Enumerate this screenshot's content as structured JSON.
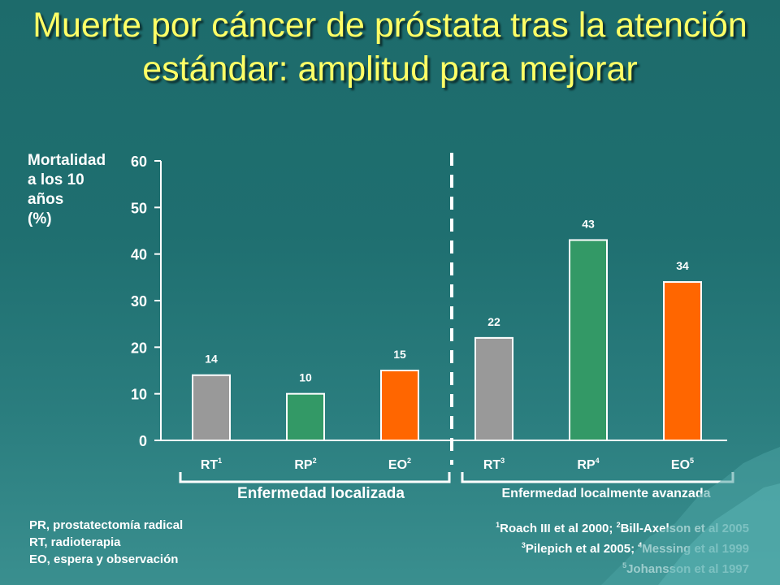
{
  "title": "Muerte por cáncer de próstata tras la atención estándar: amplitud para mejorar",
  "y_axis_label_lines": [
    "Mortalidad",
    "a los 10",
    "años",
    "(%)"
  ],
  "chart_data": {
    "type": "bar",
    "ylim": [
      0,
      60
    ],
    "yticks": [
      "0",
      "10",
      "20",
      "30",
      "40",
      "50",
      "60"
    ],
    "categories": [
      {
        "label": "RT",
        "sup": "1"
      },
      {
        "label": "RP",
        "sup": "2"
      },
      {
        "label": "EO",
        "sup": "2"
      },
      {
        "label": "RT",
        "sup": "3"
      },
      {
        "label": "RP",
        "sup": "4"
      },
      {
        "label": "EO",
        "sup": "5"
      }
    ],
    "values": [
      14,
      10,
      15,
      22,
      43,
      34
    ],
    "bar_colors": [
      "#999999",
      "#339966",
      "#ff6600",
      "#999999",
      "#339966",
      "#ff6600"
    ],
    "groups": [
      "Enfermedad localizada",
      "Enfermedad localmente avanzada"
    ],
    "separator_after_index": 2
  },
  "footnotes_left": [
    "PR, prostatectomía radical",
    "RT, radioterapia",
    "EO, espera y observación"
  ],
  "references": [
    [
      {
        "sup": "1",
        "text": "Roach III et al 2000; "
      },
      {
        "sup": "2",
        "text": "Bill-Axelson et al 2005"
      }
    ],
    [
      {
        "sup": "3",
        "text": "Pilepich et al 2005; "
      },
      {
        "sup": "4",
        "text": "Messing et al 1999"
      }
    ],
    [
      {
        "sup": "5",
        "text": "Johansson et al 1997"
      }
    ]
  ],
  "colors": {
    "title": "#ffff66",
    "text": "#ffffff",
    "background": "#1f6f70"
  }
}
